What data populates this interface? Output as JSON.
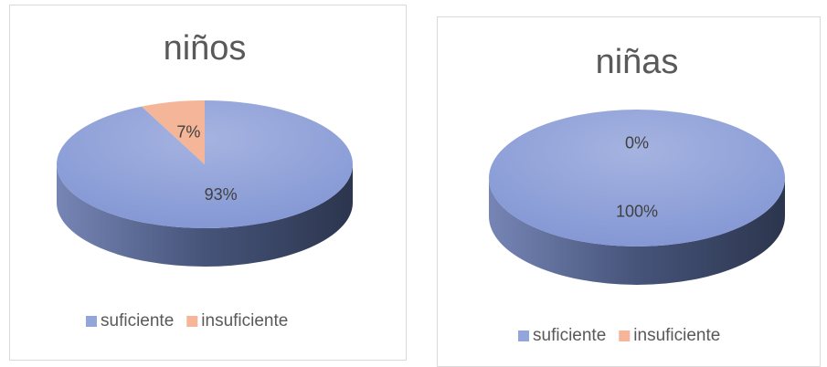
{
  "chart_data": [
    {
      "type": "pie",
      "title": "niños",
      "categories": [
        "suficiente",
        "insuficiente"
      ],
      "values": [
        93,
        7
      ],
      "value_labels": [
        "93%",
        "7%"
      ],
      "colors": [
        "#93a6dc",
        "#f4b598"
      ],
      "legend": "bottom"
    },
    {
      "type": "pie",
      "title": "niñas",
      "categories": [
        "suficiente",
        "insuficiente"
      ],
      "values": [
        100,
        0
      ],
      "value_labels": [
        "100%",
        "0%"
      ],
      "colors": [
        "#93a6dc",
        "#f4b598"
      ],
      "legend": "bottom"
    }
  ]
}
